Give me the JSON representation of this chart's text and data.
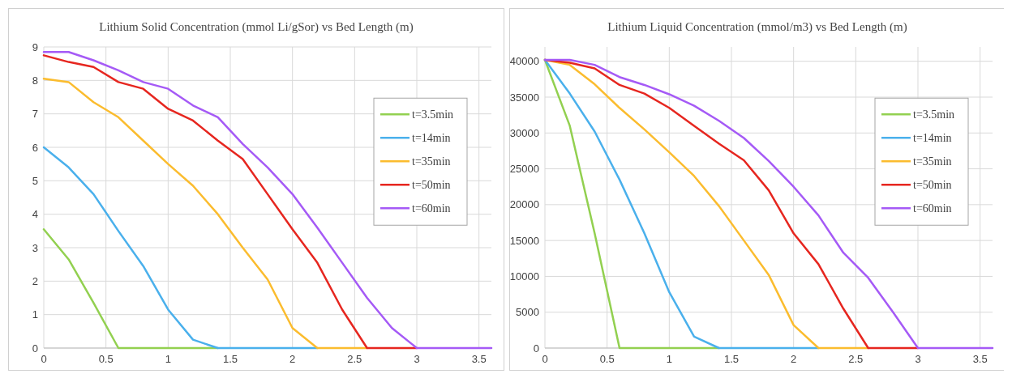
{
  "chart_data": [
    {
      "type": "line",
      "title": "Lithium Solid Concentration (mmol Li/gSor) vs Bed Length (m)",
      "x": [
        0,
        0.2,
        0.4,
        0.6,
        0.8,
        1.0,
        1.2,
        1.4,
        1.6,
        1.8,
        2.0,
        2.2,
        2.4,
        2.6,
        2.8,
        3.0,
        3.2,
        3.4,
        3.6
      ],
      "xlim": [
        0,
        3.6
      ],
      "xticks": [
        0,
        0.5,
        1,
        1.5,
        2,
        2.5,
        3,
        3.5
      ],
      "ylim": [
        0,
        9
      ],
      "yticks": [
        0,
        1,
        2,
        3,
        4,
        5,
        6,
        7,
        8,
        9
      ],
      "grid": true,
      "legend": "right",
      "marker": "none",
      "line_style": "solid",
      "series": [
        {
          "name": "t=3.5min",
          "color": "#92d050",
          "values": [
            3.55,
            2.65,
            1.35,
            0,
            0,
            0,
            0,
            0,
            null,
            null,
            null,
            null,
            null,
            null,
            null,
            null,
            null,
            null,
            null
          ]
        },
        {
          "name": "t=14min",
          "color": "#4ab0ec",
          "values": [
            6.0,
            5.4,
            4.6,
            3.5,
            2.45,
            1.15,
            0.25,
            0,
            0,
            0,
            0,
            0,
            null,
            null,
            null,
            null,
            null,
            null,
            null
          ]
        },
        {
          "name": "t=35min",
          "color": "#fbbc2e",
          "values": [
            8.05,
            7.95,
            7.35,
            6.9,
            6.2,
            5.5,
            4.85,
            4.0,
            3.0,
            2.05,
            0.6,
            0,
            0,
            0,
            null,
            null,
            null,
            null,
            null
          ]
        },
        {
          "name": "t=50min",
          "color": "#e6261f",
          "values": [
            8.75,
            8.55,
            8.4,
            7.95,
            7.75,
            7.15,
            6.8,
            6.2,
            5.65,
            4.6,
            3.55,
            2.55,
            1.15,
            0,
            0,
            0,
            null,
            null,
            null
          ]
        },
        {
          "name": "t=60min",
          "color": "#a55af6",
          "values": [
            8.85,
            8.85,
            8.6,
            8.3,
            7.95,
            7.75,
            7.25,
            6.9,
            6.1,
            5.4,
            4.6,
            3.6,
            2.55,
            1.5,
            0.6,
            0,
            0,
            0,
            0
          ]
        }
      ]
    },
    {
      "type": "line",
      "title": "Lithium Liquid Concentration (mmol/m3) vs Bed Length (m)",
      "x": [
        0,
        0.2,
        0.4,
        0.6,
        0.8,
        1.0,
        1.2,
        1.4,
        1.6,
        1.8,
        2.0,
        2.2,
        2.4,
        2.6,
        2.8,
        3.0,
        3.2,
        3.4,
        3.6
      ],
      "xlim": [
        0,
        3.6
      ],
      "xticks": [
        0,
        0.5,
        1,
        1.5,
        2,
        2.5,
        3,
        3.5
      ],
      "ylim": [
        0,
        42000
      ],
      "yticks": [
        0,
        5000,
        10000,
        15000,
        20000,
        25000,
        30000,
        35000,
        40000
      ],
      "grid": true,
      "legend": "right",
      "marker": "none",
      "line_style": "solid",
      "series": [
        {
          "name": "t=3.5min",
          "color": "#92d050",
          "values": [
            40200,
            31000,
            16000,
            0,
            0,
            0,
            0,
            0,
            null,
            null,
            null,
            null,
            null,
            null,
            null,
            null,
            null,
            null,
            null
          ]
        },
        {
          "name": "t=14min",
          "color": "#4ab0ec",
          "values": [
            40200,
            35500,
            30200,
            23500,
            16000,
            7800,
            1600,
            0,
            0,
            0,
            0,
            0,
            null,
            null,
            null,
            null,
            null,
            null,
            null
          ]
        },
        {
          "name": "t=35min",
          "color": "#fbbc2e",
          "values": [
            40200,
            39500,
            36800,
            33500,
            30500,
            27300,
            24000,
            19800,
            15000,
            10200,
            3200,
            0,
            0,
            0,
            null,
            null,
            null,
            null,
            null
          ]
        },
        {
          "name": "t=50min",
          "color": "#e6261f",
          "values": [
            40200,
            39800,
            39000,
            36700,
            35500,
            33500,
            31000,
            28500,
            26200,
            22000,
            16000,
            11700,
            5500,
            0,
            0,
            0,
            null,
            null,
            null
          ]
        },
        {
          "name": "t=60min",
          "color": "#a55af6",
          "values": [
            40200,
            40200,
            39500,
            37800,
            36700,
            35400,
            33800,
            31700,
            29300,
            26100,
            22500,
            18500,
            13300,
            9800,
            5000,
            0,
            0,
            0,
            0
          ]
        }
      ]
    }
  ]
}
